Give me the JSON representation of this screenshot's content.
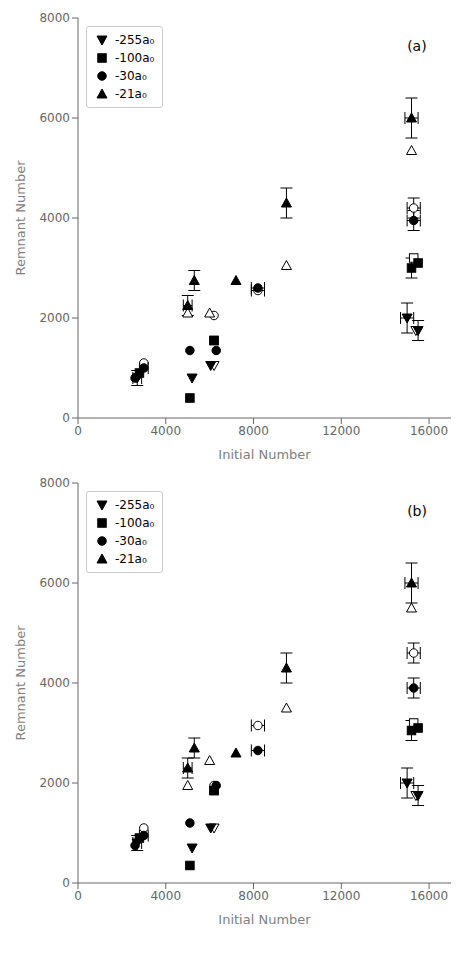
{
  "chart_data": [
    {
      "type": "scatter",
      "xlabel": "Initial Number",
      "ylabel": "Remnant Number",
      "annotations": [
        "(a)"
      ],
      "xlim": [
        0,
        17000
      ],
      "ylim": [
        0,
        8000
      ],
      "xticks": [
        0,
        4000,
        8000,
        12000,
        16000
      ],
      "yticks": [
        0,
        2000,
        4000,
        6000,
        8000
      ],
      "grid": false,
      "legend": "upper left",
      "series": [
        {
          "name": "-255a₀",
          "color": "black",
          "marker": "triangle_down",
          "x": [
            2700,
            5200,
            6050,
            15000,
            15500
          ],
          "y": [
            800,
            800,
            1050,
            2000,
            1750
          ],
          "xerr": [
            200,
            0,
            0,
            300,
            0
          ],
          "yerr": [
            150,
            0,
            0,
            300,
            200
          ]
        },
        {
          "name": "-100a₀",
          "color": "black",
          "marker": "square",
          "x": [
            2800,
            5100,
            6200,
            15200,
            15500
          ],
          "y": [
            900,
            400,
            1550,
            3000,
            3100
          ],
          "xerr": [
            0,
            0,
            0,
            0,
            0
          ],
          "yerr": [
            0,
            0,
            0,
            200,
            0
          ]
        },
        {
          "name": "-30a₀",
          "color": "black",
          "marker": "circle",
          "x": [
            2600,
            3000,
            5100,
            6300,
            8200,
            15300
          ],
          "y": [
            800,
            1000,
            1350,
            1350,
            2600,
            3950
          ],
          "xerr": [
            0,
            200,
            0,
            0,
            300,
            300
          ],
          "yerr": [
            0,
            0,
            0,
            0,
            0,
            200
          ]
        },
        {
          "name": "-21a₀",
          "color": "black",
          "marker": "triangle_up",
          "x": [
            5000,
            5300,
            7200,
            9500,
            15200
          ],
          "y": [
            2250,
            2750,
            2750,
            4300,
            6000
          ],
          "xerr": [
            200,
            0,
            0,
            0,
            300
          ],
          "yerr": [
            200,
            200,
            0,
            300,
            400
          ]
        },
        {
          "color": "black",
          "marker": "triangle_down_open",
          "x": [
            6200,
            15400
          ],
          "y": [
            1050,
            1750
          ],
          "xerr": [
            0,
            0
          ],
          "yerr": [
            0,
            0
          ]
        },
        {
          "color": "black",
          "marker": "square_open",
          "x": [
            6200,
            15300
          ],
          "y": [
            1550,
            3200
          ],
          "xerr": [
            0,
            0
          ],
          "yerr": [
            0,
            0
          ]
        },
        {
          "color": "black",
          "marker": "circle_open",
          "x": [
            3000,
            6200,
            8200,
            15300
          ],
          "y": [
            1100,
            2050,
            2550,
            4200
          ],
          "xerr": [
            0,
            0,
            300,
            300
          ],
          "yerr": [
            0,
            0,
            0,
            200
          ]
        },
        {
          "color": "black",
          "marker": "triangle_up_open",
          "x": [
            5000,
            6000,
            9500,
            15200
          ],
          "y": [
            2100,
            2100,
            3050,
            5350
          ],
          "xerr": [
            0,
            0,
            0,
            0
          ],
          "yerr": [
            0,
            0,
            0,
            0
          ]
        }
      ]
    },
    {
      "type": "scatter",
      "xlabel": "Initial Number",
      "ylabel": "Remnant Number",
      "annotations": [
        "(b)"
      ],
      "xlim": [
        0,
        17000
      ],
      "ylim": [
        0,
        8000
      ],
      "xticks": [
        0,
        4000,
        8000,
        12000,
        16000
      ],
      "yticks": [
        0,
        2000,
        4000,
        6000,
        8000
      ],
      "grid": false,
      "legend": "upper left",
      "series": [
        {
          "name": "-255a₀",
          "color": "black",
          "marker": "triangle_down",
          "x": [
            2700,
            5200,
            6050,
            15000,
            15500
          ],
          "y": [
            800,
            700,
            1100,
            2000,
            1750
          ],
          "xerr": [
            200,
            0,
            0,
            300,
            0
          ],
          "yerr": [
            150,
            0,
            0,
            300,
            200
          ]
        },
        {
          "name": "-100a₀",
          "color": "black",
          "marker": "square",
          "x": [
            2800,
            5100,
            6200,
            15200,
            15500
          ],
          "y": [
            900,
            350,
            1850,
            3050,
            3100
          ],
          "xerr": [
            0,
            0,
            0,
            0,
            0
          ],
          "yerr": [
            0,
            0,
            0,
            200,
            0
          ]
        },
        {
          "name": "-30a₀",
          "color": "black",
          "marker": "circle",
          "x": [
            2600,
            3000,
            5100,
            6300,
            8200,
            15300
          ],
          "y": [
            750,
            950,
            1200,
            1950,
            2650,
            3900
          ],
          "xerr": [
            0,
            200,
            0,
            0,
            300,
            300
          ],
          "yerr": [
            0,
            0,
            0,
            0,
            0,
            200
          ]
        },
        {
          "name": "-21a₀",
          "color": "black",
          "marker": "triangle_up",
          "x": [
            5000,
            5300,
            7200,
            9500,
            15200
          ],
          "y": [
            2300,
            2700,
            2600,
            4300,
            6000
          ],
          "xerr": [
            200,
            0,
            0,
            0,
            300
          ],
          "yerr": [
            200,
            200,
            0,
            300,
            400
          ]
        },
        {
          "color": "black",
          "marker": "triangle_down_open",
          "x": [
            6200,
            15400
          ],
          "y": [
            1100,
            1750
          ],
          "xerr": [
            0,
            0
          ],
          "yerr": [
            0,
            0
          ]
        },
        {
          "color": "black",
          "marker": "square_open",
          "x": [
            6200,
            15300
          ],
          "y": [
            1850,
            3200
          ],
          "xerr": [
            0,
            0
          ],
          "yerr": [
            0,
            0
          ]
        },
        {
          "color": "black",
          "marker": "circle_open",
          "x": [
            3000,
            6200,
            8200,
            15300
          ],
          "y": [
            1100,
            1950,
            3150,
            4600
          ],
          "xerr": [
            0,
            0,
            300,
            300
          ],
          "yerr": [
            0,
            0,
            0,
            200
          ]
        },
        {
          "color": "black",
          "marker": "triangle_up_open",
          "x": [
            5000,
            6000,
            9500,
            15200
          ],
          "y": [
            1950,
            2450,
            3500,
            5500
          ],
          "xerr": [
            0,
            0,
            0,
            0
          ],
          "yerr": [
            0,
            0,
            0,
            0
          ]
        }
      ]
    }
  ]
}
